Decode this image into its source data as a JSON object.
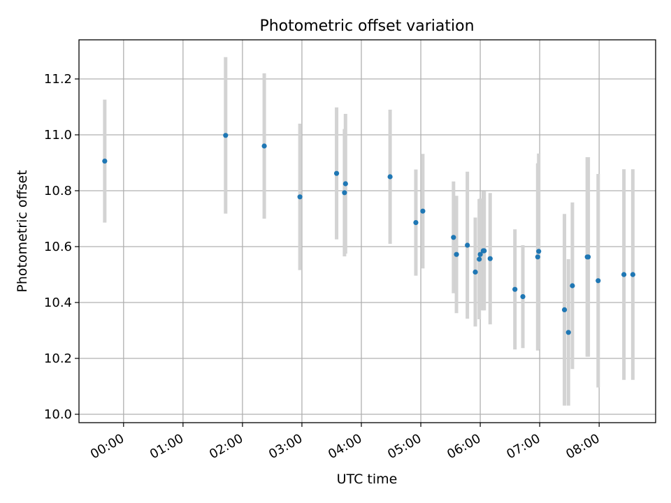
{
  "chart_data": {
    "type": "scatter",
    "title": "Photometric offset variation",
    "xlabel": "UTC time",
    "ylabel": "Photometric offset",
    "x_ticks": [
      "00:00",
      "01:00",
      "02:00",
      "03:00",
      "04:00",
      "05:00",
      "06:00",
      "07:00",
      "08:00"
    ],
    "y_ticks": [
      "10.0",
      "10.2",
      "10.4",
      "10.6",
      "10.8",
      "11.0",
      "11.2"
    ],
    "xlim": [
      "23:15",
      "08:57"
    ],
    "ylim": [
      9.97,
      11.34
    ],
    "grid": true,
    "colors": {
      "point": "#1f77b4",
      "errorbar": "#d3d3d3",
      "grid": "#b0b0b0"
    },
    "points": [
      {
        "x": "23:41",
        "y": 10.906,
        "yerr": 0.22
      },
      {
        "x": "01:43",
        "y": 10.998,
        "yerr": 0.28
      },
      {
        "x": "02:22",
        "y": 10.96,
        "yerr": 0.26
      },
      {
        "x": "02:58",
        "y": 10.778,
        "yerr": 0.262
      },
      {
        "x": "03:35",
        "y": 10.862,
        "yerr": 0.236
      },
      {
        "x": "03:43",
        "y": 10.793,
        "yerr": 0.228
      },
      {
        "x": "03:44",
        "y": 10.825,
        "yerr": 0.25
      },
      {
        "x": "04:29",
        "y": 10.85,
        "yerr": 0.24
      },
      {
        "x": "04:55",
        "y": 10.686,
        "yerr": 0.19
      },
      {
        "x": "05:02",
        "y": 10.727,
        "yerr": 0.205
      },
      {
        "x": "05:33",
        "y": 10.633,
        "yerr": 0.2
      },
      {
        "x": "05:36",
        "y": 10.572,
        "yerr": 0.21
      },
      {
        "x": "05:47",
        "y": 10.605,
        "yerr": 0.263
      },
      {
        "x": "05:55",
        "y": 10.509,
        "yerr": 0.195
      },
      {
        "x": "05:59",
        "y": 10.555,
        "yerr": 0.215
      },
      {
        "x": "06:00",
        "y": 10.572,
        "yerr": 0.2
      },
      {
        "x": "06:03",
        "y": 10.585,
        "yerr": 0.213
      },
      {
        "x": "06:04",
        "y": 10.585,
        "yerr": 0.213
      },
      {
        "x": "06:10",
        "y": 10.557,
        "yerr": 0.235
      },
      {
        "x": "06:35",
        "y": 10.447,
        "yerr": 0.215
      },
      {
        "x": "06:43",
        "y": 10.421,
        "yerr": 0.184
      },
      {
        "x": "06:58",
        "y": 10.563,
        "yerr": 0.335
      },
      {
        "x": "06:59",
        "y": 10.583,
        "yerr": 0.35
      },
      {
        "x": "07:25",
        "y": 10.374,
        "yerr": 0.343
      },
      {
        "x": "07:29",
        "y": 10.293,
        "yerr": 0.262
      },
      {
        "x": "07:33",
        "y": 10.46,
        "yerr": 0.298
      },
      {
        "x": "07:48",
        "y": 10.563,
        "yerr": 0.357
      },
      {
        "x": "07:49",
        "y": 10.563,
        "yerr": 0.357
      },
      {
        "x": "07:59",
        "y": 10.478,
        "yerr": 0.382
      },
      {
        "x": "08:25",
        "y": 10.5,
        "yerr": 0.377
      },
      {
        "x": "08:34",
        "y": 10.5,
        "yerr": 0.377
      }
    ]
  }
}
